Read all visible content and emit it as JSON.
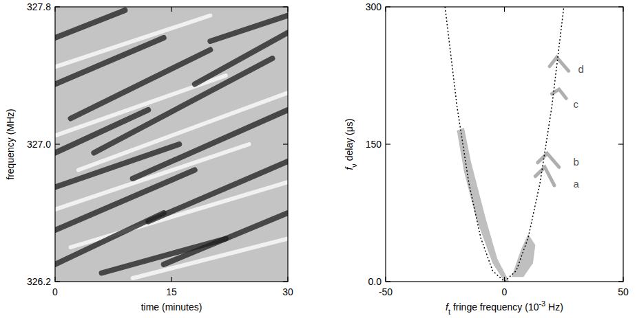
{
  "chart_data": [
    {
      "type": "dynamic_spectrum",
      "x_label": "time (minutes)",
      "y_label": "frequency (MHz)",
      "xlim": [
        0,
        30
      ],
      "ylim": [
        326.2,
        327.8
      ],
      "xticks": [
        0,
        15,
        30
      ],
      "yticks": [
        326.2,
        {
          "value": 327,
          "label": "327.0"
        },
        327.8
      ],
      "dark_stripes": [
        {
          "x": [
            0,
            9
          ],
          "y": [
            327.62,
            327.78
          ]
        },
        {
          "x": [
            0,
            14
          ],
          "y": [
            327.35,
            327.62
          ]
        },
        {
          "x": [
            2,
            20
          ],
          "y": [
            327.15,
            327.55
          ]
        },
        {
          "x": [
            0,
            12
          ],
          "y": [
            326.95,
            327.2
          ]
        },
        {
          "x": [
            5,
            28
          ],
          "y": [
            326.95,
            327.5
          ]
        },
        {
          "x": [
            0,
            16
          ],
          "y": [
            326.75,
            327.0
          ]
        },
        {
          "x": [
            10,
            30
          ],
          "y": [
            326.8,
            327.2
          ]
        },
        {
          "x": [
            0,
            18
          ],
          "y": [
            326.5,
            326.85
          ]
        },
        {
          "x": [
            12,
            30
          ],
          "y": [
            326.55,
            326.9
          ]
        },
        {
          "x": [
            0,
            14
          ],
          "y": [
            326.3,
            326.6
          ]
        },
        {
          "x": [
            14,
            30
          ],
          "y": [
            326.3,
            326.6
          ]
        },
        {
          "x": [
            18,
            30
          ],
          "y": [
            327.35,
            327.65
          ]
        },
        {
          "x": [
            20,
            30
          ],
          "y": [
            327.6,
            327.75
          ]
        },
        {
          "x": [
            6,
            22
          ],
          "y": [
            326.25,
            326.45
          ]
        }
      ],
      "light_stripes": [
        {
          "x": [
            0,
            20
          ],
          "y": [
            327.45,
            327.75
          ]
        },
        {
          "x": [
            0,
            22
          ],
          "y": [
            327.05,
            327.4
          ]
        },
        {
          "x": [
            3,
            30
          ],
          "y": [
            326.85,
            327.3
          ]
        },
        {
          "x": [
            0,
            25
          ],
          "y": [
            326.62,
            327.0
          ]
        },
        {
          "x": [
            2,
            30
          ],
          "y": [
            326.4,
            326.78
          ]
        },
        {
          "x": [
            10,
            30
          ],
          "y": [
            326.22,
            326.45
          ]
        }
      ]
    },
    {
      "type": "secondary_spectrum",
      "x_label": {
        "symbol": "f",
        "subscript": "t",
        "text": " fringe frequency (10",
        "superscript": "-3",
        "tail": " Hz)"
      },
      "y_label": {
        "symbol": "f",
        "subscript": "ν",
        "text": " delay (μs)"
      },
      "xlim": [
        -50,
        50
      ],
      "ylim": [
        0,
        300
      ],
      "xticks": [
        -50,
        0,
        50
      ],
      "yticks": [
        {
          "value": 0,
          "label": "0.0"
        },
        150,
        300
      ],
      "curve": {
        "x": [
          -25,
          -20,
          -15,
          -10,
          -5,
          0,
          5,
          10,
          15,
          20,
          25
        ],
        "y": [
          300,
          192,
          108,
          48,
          12,
          0,
          12,
          48,
          108,
          192,
          300
        ],
        "line_style": "dotted",
        "color": "#000000"
      },
      "power_regions": [
        {
          "x": [
            0,
            -5,
            -12,
            -17,
            -20,
            -17,
            -14,
            -8,
            -3,
            2
          ],
          "y": [
            0,
            20,
            70,
            120,
            165,
            168,
            130,
            70,
            25,
            0
          ]
        },
        {
          "x": [
            3,
            7,
            10,
            13,
            12,
            8
          ],
          "y": [
            5,
            35,
            52,
            40,
            20,
            5
          ]
        }
      ],
      "arclets": [
        {
          "x": [
            13,
            17,
            21
          ],
          "y": [
            115,
            125,
            105
          ]
        },
        {
          "x": [
            14,
            18,
            23
          ],
          "y": [
            130,
            140,
            125
          ]
        },
        {
          "x": [
            20,
            23,
            26
          ],
          "y": [
            205,
            210,
            200
          ]
        },
        {
          "x": [
            19,
            22,
            27
          ],
          "y": [
            235,
            245,
            230
          ]
        }
      ],
      "annotations": [
        {
          "text": "a",
          "x": 29,
          "y": 103
        },
        {
          "text": "b",
          "x": 29,
          "y": 127
        },
        {
          "text": "c",
          "x": 29,
          "y": 190
        },
        {
          "text": "d",
          "x": 31,
          "y": 228
        }
      ]
    }
  ]
}
